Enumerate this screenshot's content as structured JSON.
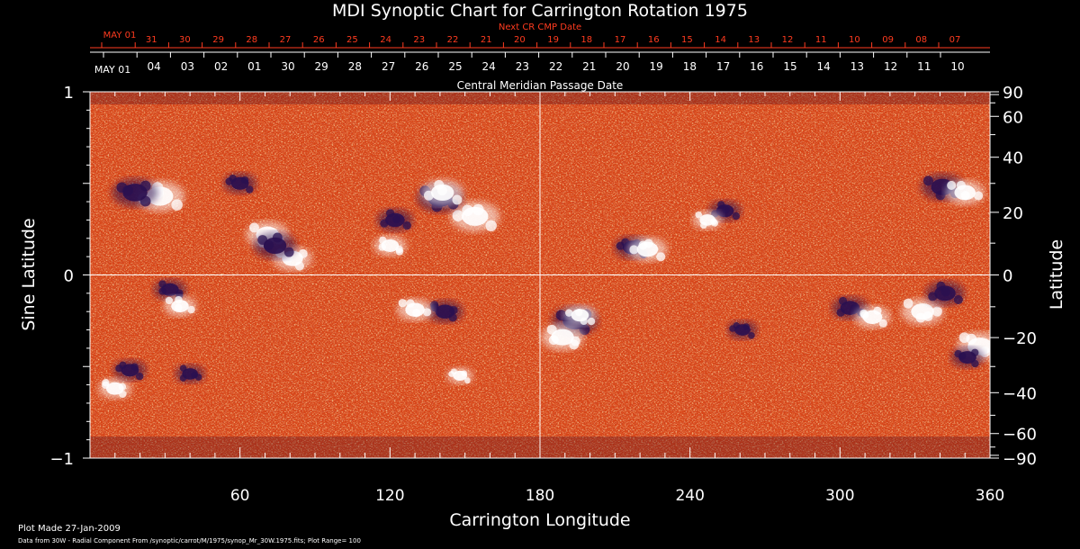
{
  "chart_data": {
    "type": "heatmap",
    "title": "MDI Synoptic Chart for Carrington Rotation 1975",
    "xlabel": "Carrington Longitude",
    "ylabel_left": "Sine Latitude",
    "ylabel_right": "Latitude",
    "top_axis_label": "Central Meridian Passage Date",
    "next_cr_label": "Next CR CMP Date",
    "xlim": [
      0,
      360
    ],
    "ylim": [
      -1,
      1
    ],
    "x_ticks": [
      "60",
      "120",
      "180",
      "240",
      "300",
      "360"
    ],
    "y_left_ticks": [
      {
        "value": 1,
        "label": "1"
      },
      {
        "value": 0,
        "label": "0"
      },
      {
        "value": -1,
        "label": "−1"
      }
    ],
    "y_right_ticks": [
      {
        "lat": 90,
        "label": "90"
      },
      {
        "lat": 60,
        "label": "60"
      },
      {
        "lat": 40,
        "label": "40"
      },
      {
        "lat": 20,
        "label": "20"
      },
      {
        "lat": 0,
        "label": "0"
      },
      {
        "lat": -20,
        "label": "−20"
      },
      {
        "lat": -40,
        "label": "−40"
      },
      {
        "lat": -60,
        "label": "−60"
      },
      {
        "lat": -90,
        "label": "−90"
      }
    ],
    "cmp_dates": [
      "MAY 01",
      "04",
      "03",
      "02",
      "01",
      "30",
      "29",
      "28",
      "27",
      "26",
      "25",
      "24",
      "23",
      "22",
      "21",
      "20",
      "19",
      "18",
      "17",
      "16",
      "15",
      "14",
      "13",
      "12",
      "11",
      "10"
    ],
    "next_cr_dates": [
      "MAY 01",
      "31",
      "30",
      "29",
      "28",
      "27",
      "26",
      "25",
      "24",
      "23",
      "22",
      "21",
      "20",
      "19",
      "18",
      "17",
      "16",
      "15",
      "14",
      "13",
      "12",
      "11",
      "10",
      "09",
      "08",
      "07"
    ],
    "reference_lines": {
      "longitude": 180,
      "sine_latitude": 0
    },
    "colors": {
      "background": "#000000",
      "base": "#e8501a",
      "positive": "#ffffff",
      "negative": "#2a1050",
      "accent": "#ff3b1f"
    },
    "active_regions": [
      {
        "polarity": "positive",
        "lon": 28,
        "lat": 0.43,
        "strength": 1.0
      },
      {
        "polarity": "negative",
        "lon": 18,
        "lat": 0.45,
        "strength": 0.9
      },
      {
        "polarity": "positive",
        "lon": 71,
        "lat": 0.22,
        "strength": 0.8
      },
      {
        "polarity": "positive",
        "lon": 81,
        "lat": 0.09,
        "strength": 0.7
      },
      {
        "polarity": "negative",
        "lon": 74,
        "lat": 0.16,
        "strength": 0.8
      },
      {
        "polarity": "negative",
        "lon": 60,
        "lat": 0.5,
        "strength": 0.5
      },
      {
        "polarity": "positive",
        "lon": 154,
        "lat": 0.32,
        "strength": 1.0
      },
      {
        "polarity": "negative",
        "lon": 140,
        "lat": 0.42,
        "strength": 0.9
      },
      {
        "polarity": "positive",
        "lon": 141,
        "lat": 0.45,
        "strength": 0.8
      },
      {
        "polarity": "negative",
        "lon": 122,
        "lat": 0.3,
        "strength": 0.6
      },
      {
        "polarity": "positive",
        "lon": 120,
        "lat": 0.16,
        "strength": 0.5
      },
      {
        "polarity": "negative",
        "lon": 217,
        "lat": 0.15,
        "strength": 0.6
      },
      {
        "polarity": "positive",
        "lon": 223,
        "lat": 0.14,
        "strength": 0.7
      },
      {
        "polarity": "negative",
        "lon": 254,
        "lat": 0.35,
        "strength": 0.5
      },
      {
        "polarity": "positive",
        "lon": 247,
        "lat": 0.3,
        "strength": 0.4
      },
      {
        "polarity": "negative",
        "lon": 341,
        "lat": 0.48,
        "strength": 0.8
      },
      {
        "polarity": "positive",
        "lon": 350,
        "lat": 0.45,
        "strength": 0.7
      },
      {
        "polarity": "negative",
        "lon": 32,
        "lat": -0.08,
        "strength": 0.5
      },
      {
        "polarity": "positive",
        "lon": 36,
        "lat": -0.17,
        "strength": 0.5
      },
      {
        "polarity": "negative",
        "lon": 142,
        "lat": -0.2,
        "strength": 0.6
      },
      {
        "polarity": "positive",
        "lon": 130,
        "lat": -0.19,
        "strength": 0.6
      },
      {
        "polarity": "negative",
        "lon": 194,
        "lat": -0.25,
        "strength": 0.9
      },
      {
        "polarity": "positive",
        "lon": 189,
        "lat": -0.34,
        "strength": 0.8
      },
      {
        "polarity": "positive",
        "lon": 196,
        "lat": -0.22,
        "strength": 0.5
      },
      {
        "polarity": "negative",
        "lon": 304,
        "lat": -0.18,
        "strength": 0.6
      },
      {
        "polarity": "positive",
        "lon": 313,
        "lat": -0.23,
        "strength": 0.6
      },
      {
        "polarity": "positive",
        "lon": 333,
        "lat": -0.2,
        "strength": 0.8
      },
      {
        "polarity": "negative",
        "lon": 342,
        "lat": -0.1,
        "strength": 0.7
      },
      {
        "polarity": "positive",
        "lon": 356,
        "lat": -0.39,
        "strength": 0.9
      },
      {
        "polarity": "negative",
        "lon": 351,
        "lat": -0.45,
        "strength": 0.5
      },
      {
        "polarity": "positive",
        "lon": 10,
        "lat": -0.62,
        "strength": 0.5
      },
      {
        "polarity": "negative",
        "lon": 16,
        "lat": -0.52,
        "strength": 0.5
      },
      {
        "polarity": "negative",
        "lon": 40,
        "lat": -0.54,
        "strength": 0.4
      },
      {
        "polarity": "positive",
        "lon": 148,
        "lat": -0.55,
        "strength": 0.3
      },
      {
        "polarity": "negative",
        "lon": 261,
        "lat": -0.3,
        "strength": 0.4
      }
    ]
  },
  "footer": {
    "plot_made": "Plot Made 27-Jan-2009",
    "source": "Data from 30W - Radial Component From /synoptic/carrot/M/1975/synop_Mr_30W.1975.fits; Plot Range= 100"
  }
}
